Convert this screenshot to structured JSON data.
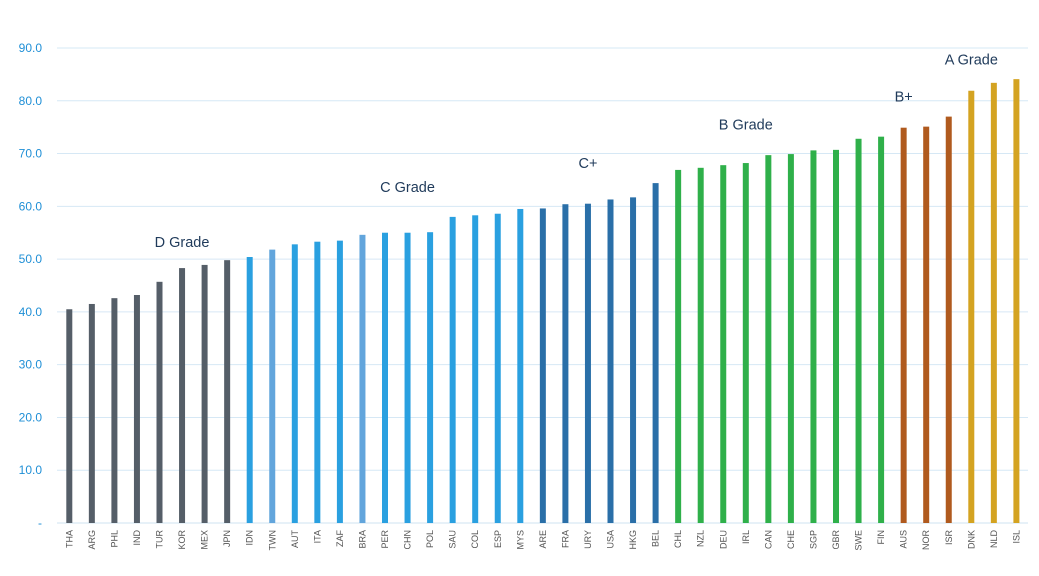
{
  "chart_data": {
    "type": "bar",
    "ylim": [
      0,
      90
    ],
    "yticks": [
      "-",
      "10.0",
      "20.0",
      "30.0",
      "40.0",
      "50.0",
      "60.0",
      "70.0",
      "80.0",
      "90.0"
    ],
    "grid": true,
    "categories": [
      "THA",
      "ARG",
      "PHL",
      "IND",
      "TUR",
      "KOR",
      "MEX",
      "JPN",
      "IDN",
      "TWN",
      "AUT",
      "ITA",
      "ZAF",
      "BRA",
      "PER",
      "CHN",
      "POL",
      "SAU",
      "COL",
      "ESP",
      "MYS",
      "ARE",
      "FRA",
      "URY",
      "USA",
      "HKG",
      "BEL",
      "CHL",
      "NZL",
      "DEU",
      "IRL",
      "CAN",
      "CHE",
      "SGP",
      "GBR",
      "SWE",
      "FIN",
      "AUS",
      "NOR",
      "ISR",
      "DNK",
      "NLD",
      "ISL"
    ],
    "values": [
      40.5,
      41.5,
      42.6,
      43.2,
      45.7,
      48.3,
      48.9,
      49.8,
      50.4,
      51.8,
      52.8,
      53.3,
      53.5,
      54.6,
      55.0,
      55.0,
      55.1,
      58.0,
      58.3,
      58.6,
      59.5,
      59.6,
      60.4,
      60.5,
      61.3,
      61.7,
      64.4,
      66.9,
      67.3,
      67.8,
      68.2,
      69.7,
      69.9,
      70.6,
      70.7,
      72.8,
      73.2,
      74.9,
      75.1,
      77.0,
      81.9,
      83.4,
      84.1
    ],
    "colors": [
      "#555e68",
      "#555e68",
      "#555e68",
      "#555e68",
      "#555e68",
      "#555e68",
      "#555e68",
      "#555e68",
      "#2aa0e0",
      "#62a5dc",
      "#2aa0e0",
      "#2aa0e0",
      "#2aa0e0",
      "#62a5dc",
      "#2aa0e0",
      "#2aa0e0",
      "#2aa0e0",
      "#2aa0e0",
      "#2aa0e0",
      "#2aa0e0",
      "#2aa0e0",
      "#2a6fa8",
      "#2a6fa8",
      "#2a6fa8",
      "#2a6fa8",
      "#2a6fa8",
      "#2a6fa8",
      "#2fb04a",
      "#2fb04a",
      "#2fb04a",
      "#2fb04a",
      "#2fb04a",
      "#2fb04a",
      "#2fb04a",
      "#2fb04a",
      "#2fb04a",
      "#2fb04a",
      "#b05a1e",
      "#b05a1e",
      "#b05a1e",
      "#d4a321",
      "#d4a321",
      "#d4a321"
    ],
    "annotations": [
      {
        "text": "D Grade",
        "x": "KOR",
        "y": 52.3
      },
      {
        "text": "C Grade",
        "x": "CHN",
        "y": 62.7
      },
      {
        "text": "C+",
        "x": "URY",
        "y": 67.3
      },
      {
        "text": "B Grade",
        "x": "IRL",
        "y": 74.6
      },
      {
        "text": "B+",
        "x": "AUS",
        "y": 79.9
      },
      {
        "text": "A Grade",
        "x": "DNK",
        "y": 86.9
      }
    ]
  }
}
